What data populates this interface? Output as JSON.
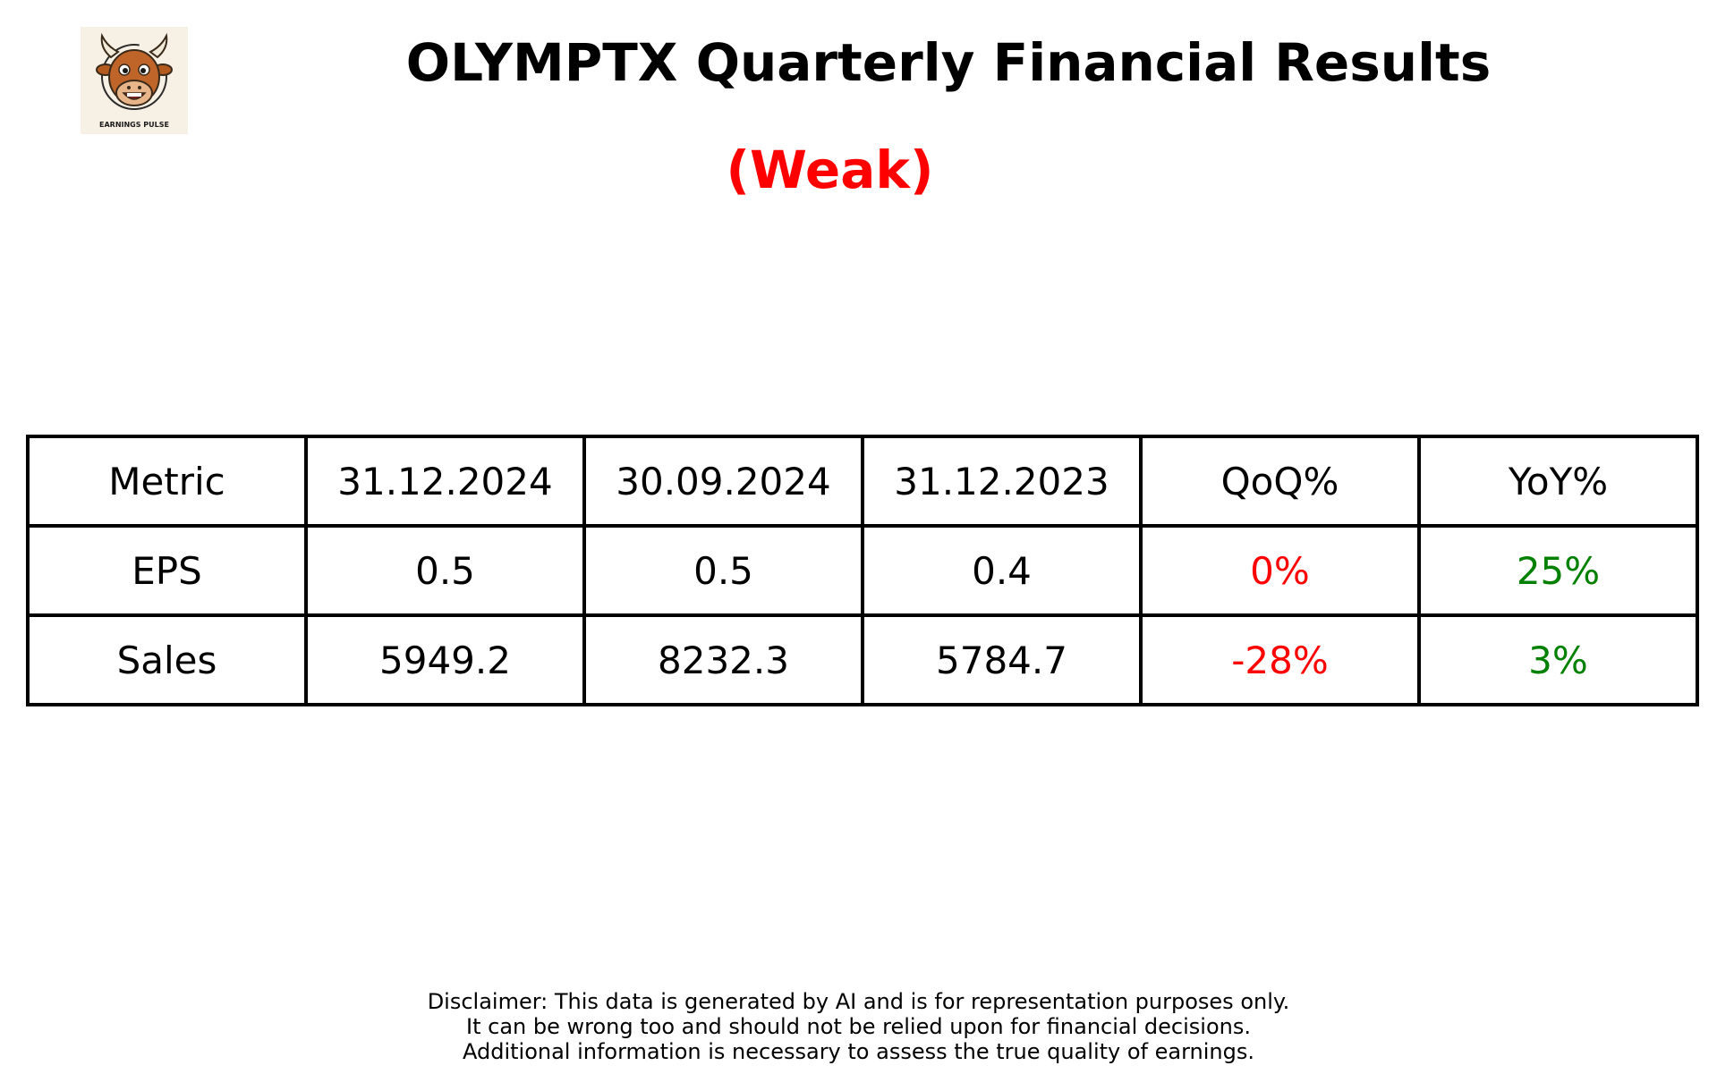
{
  "title": "OLYMPTX Quarterly Financial Results",
  "verdict": {
    "text": "(Weak)",
    "color": "#ff0000"
  },
  "logo": {
    "icon": "bull-mascot-icon",
    "caption": "EARNINGS PULSE",
    "background": "#f7f0e4"
  },
  "colors": {
    "negative": "#ff0000",
    "positive": "#008000",
    "text": "#000000"
  },
  "chart_data": {
    "type": "table",
    "title": "OLYMPTX Quarterly Financial Results",
    "columns": [
      "Metric",
      "31.12.2024",
      "30.09.2024",
      "31.12.2023",
      "QoQ%",
      "YoY%"
    ],
    "rows": [
      {
        "metric": "EPS",
        "values": [
          "0.5",
          "0.5",
          "0.4"
        ],
        "qoq": {
          "text": "0%",
          "trend": "negative"
        },
        "yoy": {
          "text": "25%",
          "trend": "positive"
        }
      },
      {
        "metric": "Sales",
        "values": [
          "5949.2",
          "8232.3",
          "5784.7"
        ],
        "qoq": {
          "text": "-28%",
          "trend": "negative"
        },
        "yoy": {
          "text": "3%",
          "trend": "positive"
        }
      }
    ]
  },
  "disclaimer": [
    "Disclaimer: This data is generated by AI and is for representation purposes only.",
    "It can be wrong too and should not be relied upon for financial decisions.",
    "Additional information is necessary to assess the true quality of earnings."
  ]
}
